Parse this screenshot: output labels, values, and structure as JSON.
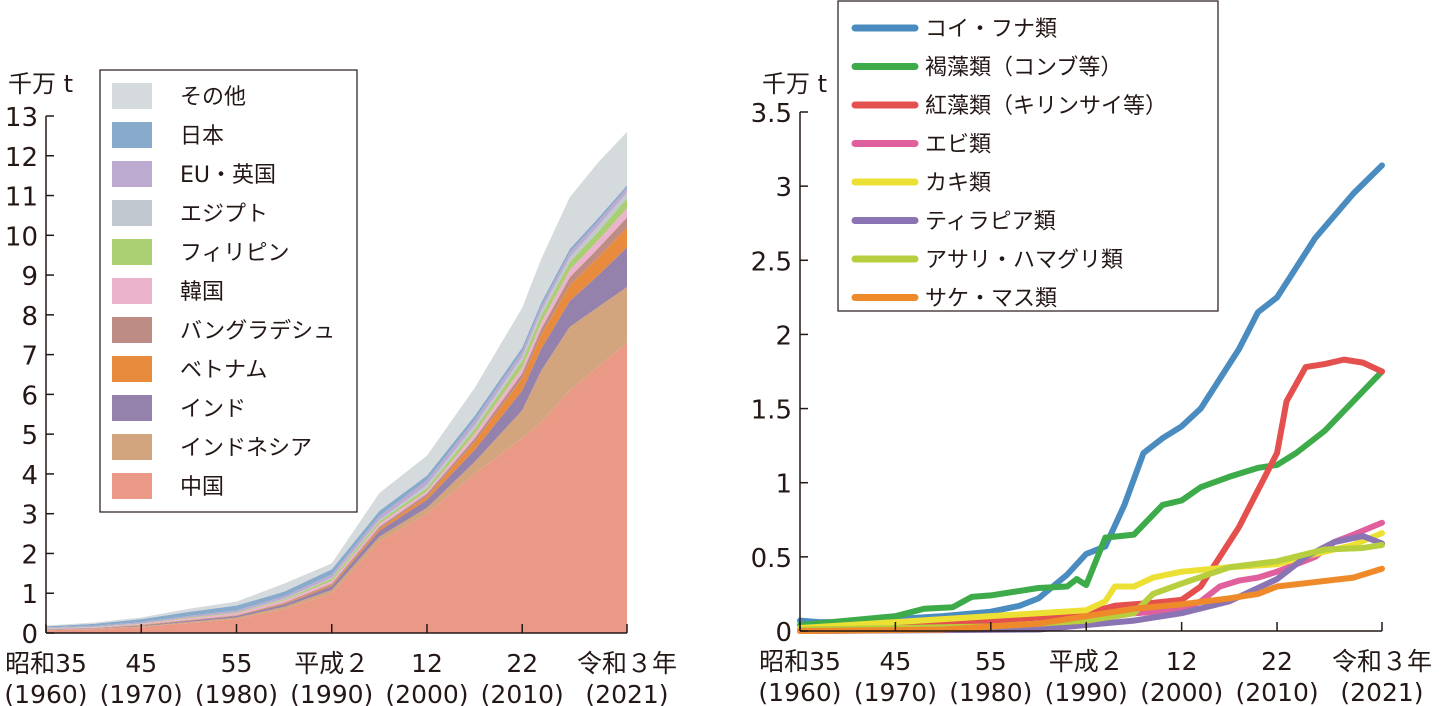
{
  "chart_data": [
    {
      "type": "area",
      "stacked": true,
      "ylabel": "千万 t",
      "ylim": [
        0,
        13
      ],
      "yticks": [
        "0",
        "1",
        "2",
        "3",
        "4",
        "5",
        "6",
        "7",
        "8",
        "9",
        "10",
        "11",
        "12",
        "13"
      ],
      "xlim": [
        1960,
        2021
      ],
      "xticks": [
        {
          "year": 1960,
          "l1": "昭和35",
          "l2": "(1960)"
        },
        {
          "year": 1970,
          "l1": "45",
          "l2": "(1970)"
        },
        {
          "year": 1980,
          "l1": "55",
          "l2": "(1980)"
        },
        {
          "year": 1990,
          "l1": "平成２",
          "l2": "(1990)"
        },
        {
          "year": 2000,
          "l1": "12",
          "l2": "(2000)"
        },
        {
          "year": 2010,
          "l1": "22",
          "l2": "(2010)"
        },
        {
          "year": 2021,
          "l1": "令和３年",
          "l2": "(2021)"
        }
      ],
      "legend_position": "top-left",
      "x": [
        1960,
        1965,
        1970,
        1975,
        1980,
        1985,
        1990,
        1995,
        2000,
        2005,
        2010,
        2012,
        2015,
        2018,
        2021
      ],
      "series": [
        {
          "name": "中国",
          "color": "#ea9987",
          "values": [
            0.07,
            0.1,
            0.15,
            0.25,
            0.35,
            0.6,
            1.0,
            2.3,
            3.0,
            4.0,
            4.9,
            5.3,
            6.1,
            6.7,
            7.3
          ]
        },
        {
          "name": "インドネシア",
          "color": "#d3a57f",
          "values": [
            0.01,
            0.01,
            0.02,
            0.03,
            0.04,
            0.06,
            0.08,
            0.12,
            0.15,
            0.3,
            0.7,
            1.3,
            1.6,
            1.5,
            1.4
          ]
        },
        {
          "name": "インド",
          "color": "#9482ac",
          "values": [
            0.01,
            0.01,
            0.02,
            0.03,
            0.04,
            0.06,
            0.1,
            0.15,
            0.2,
            0.3,
            0.5,
            0.55,
            0.65,
            0.8,
            1.0
          ]
        },
        {
          "name": "ベトナム",
          "color": "#e98b3c",
          "values": [
            0,
            0,
            0.01,
            0.01,
            0.01,
            0.02,
            0.03,
            0.05,
            0.08,
            0.2,
            0.3,
            0.35,
            0.4,
            0.45,
            0.5
          ]
        },
        {
          "name": "バングラデシュ",
          "color": "#bd8c84",
          "values": [
            0.01,
            0.01,
            0.01,
            0.01,
            0.01,
            0.02,
            0.03,
            0.05,
            0.07,
            0.09,
            0.13,
            0.15,
            0.2,
            0.23,
            0.25
          ]
        },
        {
          "name": "韓国",
          "color": "#ebb3cc",
          "values": [
            0.01,
            0.01,
            0.02,
            0.04,
            0.05,
            0.06,
            0.07,
            0.08,
            0.07,
            0.12,
            0.15,
            0.16,
            0.18,
            0.2,
            0.23
          ]
        },
        {
          "name": "フィリピン",
          "color": "#a9cf72",
          "values": [
            0.01,
            0.01,
            0.01,
            0.02,
            0.02,
            0.03,
            0.06,
            0.06,
            0.08,
            0.12,
            0.17,
            0.18,
            0.2,
            0.22,
            0.25
          ]
        },
        {
          "name": "エジプト",
          "color": "#c2c8cf",
          "values": [
            0,
            0,
            0,
            0,
            0,
            0.01,
            0.02,
            0.03,
            0.07,
            0.09,
            0.1,
            0.11,
            0.12,
            0.14,
            0.15
          ]
        },
        {
          "name": "EU・英国",
          "color": "#bcaad0",
          "values": [
            0.02,
            0.03,
            0.03,
            0.04,
            0.05,
            0.06,
            0.08,
            0.1,
            0.12,
            0.13,
            0.13,
            0.12,
            0.12,
            0.12,
            0.12
          ]
        },
        {
          "name": "日本",
          "color": "#88aacb",
          "values": [
            0.03,
            0.05,
            0.08,
            0.1,
            0.12,
            0.12,
            0.13,
            0.13,
            0.12,
            0.11,
            0.1,
            0.09,
            0.09,
            0.08,
            0.06
          ]
        },
        {
          "name": "その他",
          "color": "#d5dadc",
          "values": [
            0.02,
            0.03,
            0.04,
            0.08,
            0.1,
            0.2,
            0.15,
            0.45,
            0.5,
            0.7,
            1.0,
            1.1,
            1.3,
            1.4,
            1.34
          ]
        }
      ]
    },
    {
      "type": "line",
      "ylabel": "千万 t",
      "ylim": [
        0,
        3.5
      ],
      "yticks": [
        "0",
        "0.5",
        "1",
        "1.5",
        "2",
        "2.5",
        "3",
        "3.5"
      ],
      "xlim": [
        1960,
        2021
      ],
      "xticks": [
        {
          "year": 1960,
          "l1": "昭和35",
          "l2": "(1960)"
        },
        {
          "year": 1970,
          "l1": "45",
          "l2": "(1970)"
        },
        {
          "year": 1980,
          "l1": "55",
          "l2": "(1980)"
        },
        {
          "year": 1990,
          "l1": "平成２",
          "l2": "(1990)"
        },
        {
          "year": 2000,
          "l1": "12",
          "l2": "(2000)"
        },
        {
          "year": 2010,
          "l1": "22",
          "l2": "(2010)"
        },
        {
          "year": 2021,
          "l1": "令和３年",
          "l2": "(2021)"
        }
      ],
      "legend_position": "top-left",
      "series": [
        {
          "name": "コイ・フナ類",
          "color": "#4a8cbf",
          "points": [
            [
              1960,
              0.07
            ],
            [
              1962,
              0.06
            ],
            [
              1965,
              0.06
            ],
            [
              1970,
              0.08
            ],
            [
              1975,
              0.1
            ],
            [
              1980,
              0.13
            ],
            [
              1983,
              0.17
            ],
            [
              1985,
              0.22
            ],
            [
              1988,
              0.38
            ],
            [
              1990,
              0.52
            ],
            [
              1992,
              0.57
            ],
            [
              1994,
              0.85
            ],
            [
              1996,
              1.2
            ],
            [
              1998,
              1.3
            ],
            [
              2000,
              1.38
            ],
            [
              2002,
              1.5
            ],
            [
              2004,
              1.7
            ],
            [
              2006,
              1.9
            ],
            [
              2008,
              2.15
            ],
            [
              2010,
              2.25
            ],
            [
              2012,
              2.45
            ],
            [
              2014,
              2.65
            ],
            [
              2016,
              2.8
            ],
            [
              2018,
              2.95
            ],
            [
              2021,
              3.14
            ]
          ]
        },
        {
          "name": "褐藻類（コンブ等）",
          "color": "#3eab4a",
          "points": [
            [
              1960,
              0.04
            ],
            [
              1965,
              0.07
            ],
            [
              1970,
              0.1
            ],
            [
              1973,
              0.15
            ],
            [
              1976,
              0.16
            ],
            [
              1978,
              0.23
            ],
            [
              1980,
              0.24
            ],
            [
              1985,
              0.29
            ],
            [
              1988,
              0.3
            ],
            [
              1989,
              0.35
            ],
            [
              1990,
              0.31
            ],
            [
              1992,
              0.63
            ],
            [
              1995,
              0.65
            ],
            [
              1998,
              0.85
            ],
            [
              2000,
              0.88
            ],
            [
              2002,
              0.97
            ],
            [
              2005,
              1.04
            ],
            [
              2008,
              1.1
            ],
            [
              2010,
              1.12
            ],
            [
              2012,
              1.2
            ],
            [
              2015,
              1.35
            ],
            [
              2018,
              1.55
            ],
            [
              2021,
              1.75
            ]
          ]
        },
        {
          "name": "紅藻類（キリンサイ等）",
          "color": "#e4504d",
          "points": [
            [
              1960,
              0.01
            ],
            [
              1970,
              0.03
            ],
            [
              1980,
              0.07
            ],
            [
              1985,
              0.09
            ],
            [
              1990,
              0.12
            ],
            [
              1993,
              0.17
            ],
            [
              1997,
              0.19
            ],
            [
              2000,
              0.21
            ],
            [
              2002,
              0.3
            ],
            [
              2004,
              0.5
            ],
            [
              2006,
              0.7
            ],
            [
              2008,
              0.95
            ],
            [
              2010,
              1.2
            ],
            [
              2011,
              1.55
            ],
            [
              2013,
              1.78
            ],
            [
              2015,
              1.8
            ],
            [
              2017,
              1.83
            ],
            [
              2019,
              1.81
            ],
            [
              2021,
              1.75
            ]
          ]
        },
        {
          "name": "エビ類",
          "color": "#e0609e",
          "points": [
            [
              1960,
              0
            ],
            [
              1980,
              0.01
            ],
            [
              1985,
              0.02
            ],
            [
              1990,
              0.07
            ],
            [
              1995,
              0.12
            ],
            [
              2000,
              0.14
            ],
            [
              2002,
              0.2
            ],
            [
              2004,
              0.3
            ],
            [
              2006,
              0.34
            ],
            [
              2008,
              0.36
            ],
            [
              2010,
              0.4
            ],
            [
              2012,
              0.45
            ],
            [
              2014,
              0.5
            ],
            [
              2016,
              0.6
            ],
            [
              2018,
              0.65
            ],
            [
              2021,
              0.73
            ]
          ]
        },
        {
          "name": "カキ類",
          "color": "#ede034",
          "points": [
            [
              1960,
              0.02
            ],
            [
              1965,
              0.04
            ],
            [
              1970,
              0.06
            ],
            [
              1975,
              0.08
            ],
            [
              1980,
              0.1
            ],
            [
              1985,
              0.12
            ],
            [
              1990,
              0.14
            ],
            [
              1992,
              0.2
            ],
            [
              1993,
              0.3
            ],
            [
              1995,
              0.3
            ],
            [
              1997,
              0.36
            ],
            [
              2000,
              0.4
            ],
            [
              2005,
              0.43
            ],
            [
              2010,
              0.45
            ],
            [
              2014,
              0.52
            ],
            [
              2018,
              0.58
            ],
            [
              2021,
              0.66
            ]
          ]
        },
        {
          "name": "ティラピア類",
          "color": "#8b74b3",
          "points": [
            [
              1960,
              0
            ],
            [
              1985,
              0.01
            ],
            [
              1990,
              0.04
            ],
            [
              1995,
              0.07
            ],
            [
              2000,
              0.12
            ],
            [
              2005,
              0.2
            ],
            [
              2010,
              0.35
            ],
            [
              2013,
              0.5
            ],
            [
              2016,
              0.6
            ],
            [
              2019,
              0.64
            ],
            [
              2021,
              0.59
            ]
          ]
        },
        {
          "name": "アサリ・ハマグリ類",
          "color": "#b7cf3e",
          "points": [
            [
              1960,
              0.01
            ],
            [
              1980,
              0.03
            ],
            [
              1985,
              0.05
            ],
            [
              1990,
              0.07
            ],
            [
              1995,
              0.12
            ],
            [
              1997,
              0.25
            ],
            [
              2000,
              0.32
            ],
            [
              2005,
              0.43
            ],
            [
              2010,
              0.47
            ],
            [
              2015,
              0.55
            ],
            [
              2019,
              0.56
            ],
            [
              2021,
              0.58
            ]
          ]
        },
        {
          "name": "サケ・マス類",
          "color": "#ee8a2a",
          "points": [
            [
              1960,
              0
            ],
            [
              1975,
              0.01
            ],
            [
              1980,
              0.03
            ],
            [
              1985,
              0.05
            ],
            [
              1990,
              0.1
            ],
            [
              1995,
              0.15
            ],
            [
              2000,
              0.18
            ],
            [
              2005,
              0.22
            ],
            [
              2008,
              0.25
            ],
            [
              2010,
              0.3
            ],
            [
              2014,
              0.33
            ],
            [
              2018,
              0.36
            ],
            [
              2021,
              0.42
            ]
          ]
        }
      ]
    }
  ]
}
